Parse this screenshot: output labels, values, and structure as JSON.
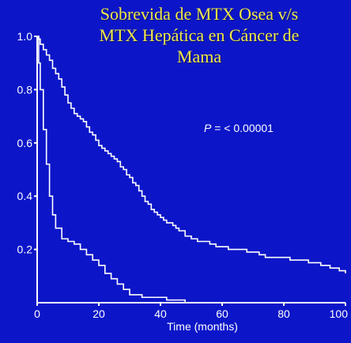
{
  "chart_data": {
    "type": "line",
    "title_lines": [
      "Sobrevida de MTX Osea v/s",
      "MTX Hepática en Cáncer de",
      "Mama"
    ],
    "xlabel": "Time (months)",
    "ylabel": "",
    "xlim": [
      0,
      100
    ],
    "ylim": [
      0,
      1.0
    ],
    "xticks": [
      "0",
      "20",
      "40",
      "60",
      "80",
      "100"
    ],
    "yticks": [
      "0.2",
      "0.4",
      "0.6",
      "0.8",
      "1.0"
    ],
    "annotation": {
      "italic": "P",
      "rest": " = < 0.00001"
    },
    "line_color": "#ffffff",
    "series": [
      {
        "x": [
          0,
          0.5,
          1,
          2,
          3,
          4,
          5,
          6,
          7,
          8,
          9,
          10,
          11,
          12,
          13,
          14,
          15,
          16,
          17,
          18,
          19,
          20,
          21,
          22,
          23,
          24,
          25,
          26,
          27,
          28,
          29,
          30,
          31,
          32,
          33,
          34,
          35,
          36,
          37,
          38,
          39,
          40,
          41,
          42,
          43,
          44,
          45,
          46,
          48,
          50,
          52,
          54,
          56,
          58,
          60,
          62,
          65,
          68,
          70,
          72,
          74,
          78,
          80,
          82,
          85,
          88,
          90,
          92,
          95,
          98,
          100
        ],
        "values": [
          1.0,
          0.99,
          0.97,
          0.95,
          0.93,
          0.91,
          0.88,
          0.86,
          0.84,
          0.81,
          0.78,
          0.75,
          0.73,
          0.71,
          0.7,
          0.69,
          0.68,
          0.66,
          0.64,
          0.63,
          0.61,
          0.59,
          0.58,
          0.57,
          0.56,
          0.55,
          0.54,
          0.53,
          0.51,
          0.5,
          0.48,
          0.47,
          0.45,
          0.44,
          0.42,
          0.4,
          0.38,
          0.37,
          0.35,
          0.34,
          0.33,
          0.32,
          0.31,
          0.3,
          0.3,
          0.29,
          0.28,
          0.27,
          0.25,
          0.24,
          0.23,
          0.23,
          0.22,
          0.21,
          0.21,
          0.2,
          0.2,
          0.19,
          0.19,
          0.18,
          0.17,
          0.17,
          0.17,
          0.16,
          0.16,
          0.15,
          0.15,
          0.14,
          0.13,
          0.12,
          0.11
        ]
      },
      {
        "x": [
          0,
          0.5,
          1,
          2,
          3,
          4,
          5,
          6,
          8,
          10,
          12,
          14,
          16,
          18,
          20,
          22,
          24,
          26,
          28,
          30,
          34,
          38,
          42,
          46,
          48
        ],
        "values": [
          1.0,
          0.9,
          0.8,
          0.65,
          0.52,
          0.4,
          0.33,
          0.28,
          0.24,
          0.23,
          0.22,
          0.2,
          0.18,
          0.16,
          0.14,
          0.11,
          0.09,
          0.07,
          0.05,
          0.03,
          0.02,
          0.02,
          0.01,
          0.01,
          0.0
        ]
      }
    ]
  }
}
